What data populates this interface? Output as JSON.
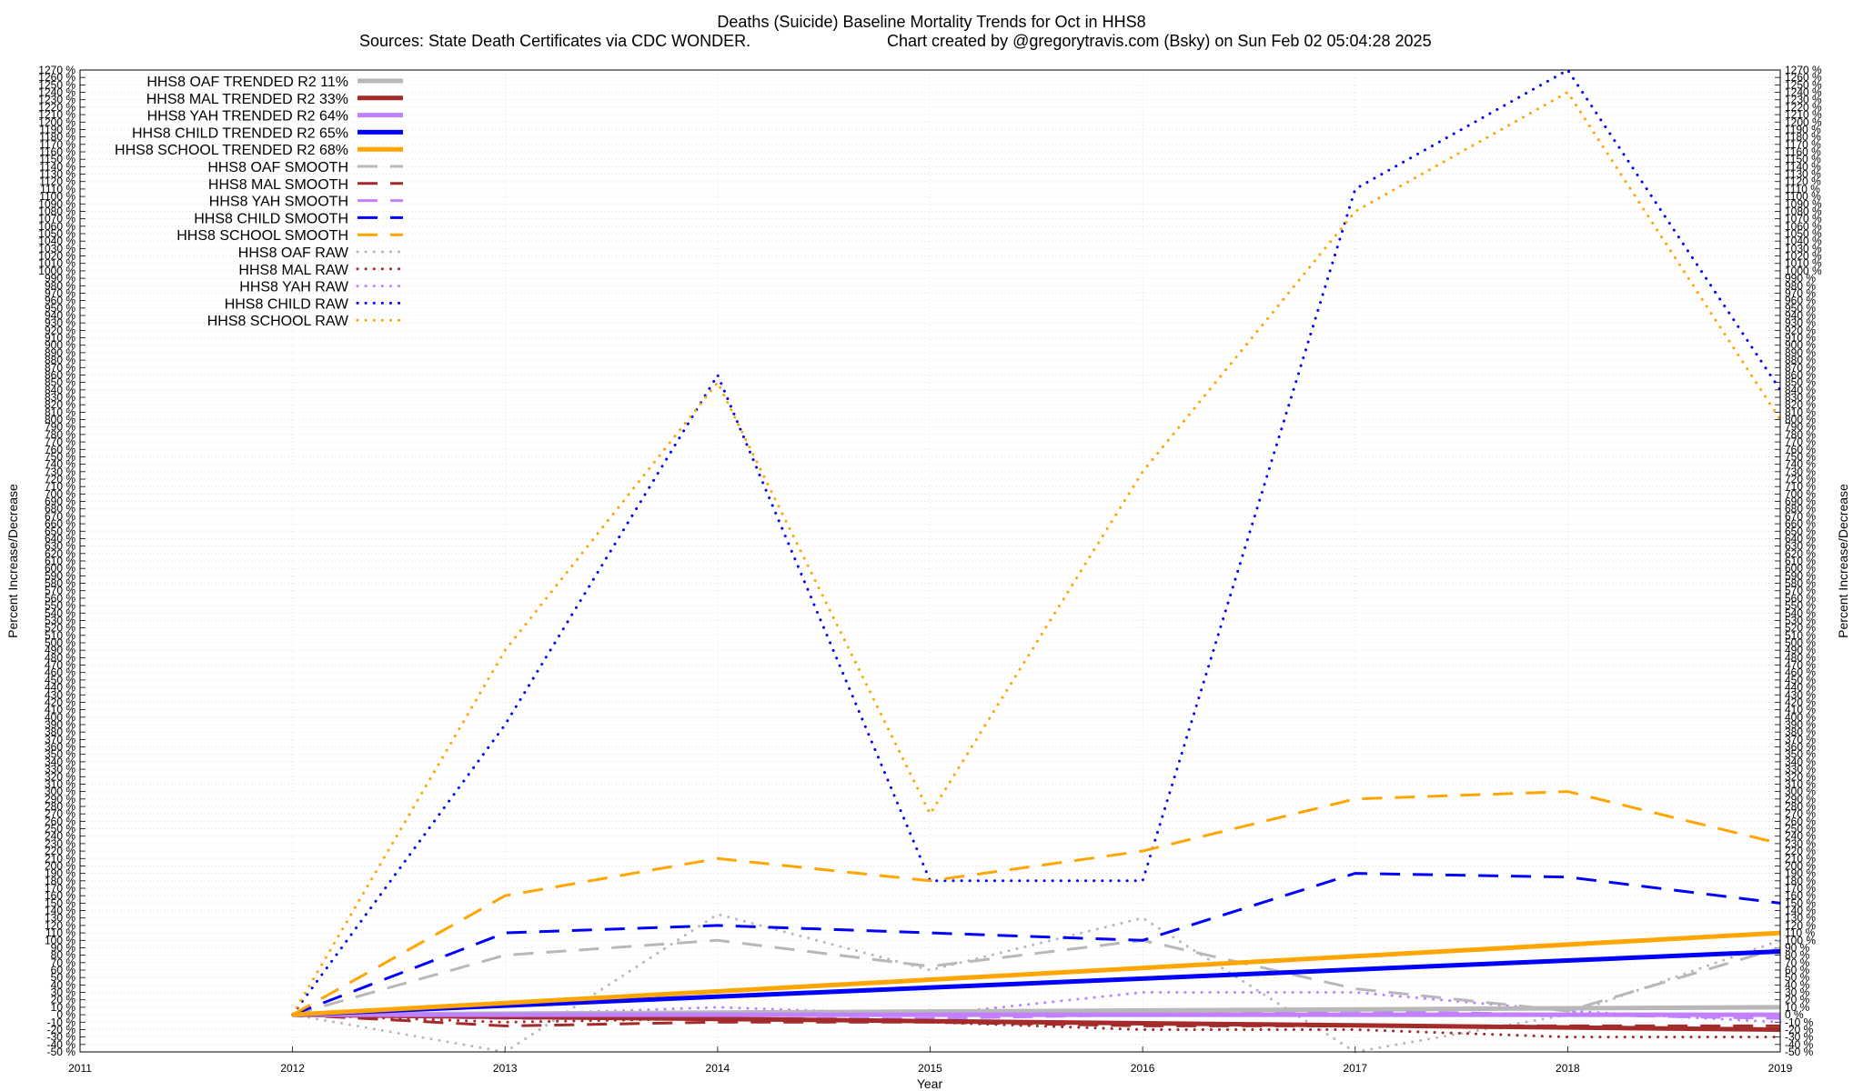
{
  "chart_data": {
    "type": "line",
    "title": "Deaths (Suicide)  Baseline Mortality Trends for Oct in HHS8",
    "subtitle_left": "Sources: State Death Certificates via CDC WONDER.",
    "subtitle_right": "Chart created by @gregorytravis.com (Bsky) on Sun Feb 02 05:04:28 2025",
    "xlabel": "Year",
    "ylabel": "Percent Increase/Decrease",
    "y2label": "Percent Increase/Decrease",
    "xlim": [
      2011,
      2019
    ],
    "ylim": [
      -50,
      1270
    ],
    "ytick_step": 10,
    "ytick_suffix": " %",
    "x_ticks": [
      "2011",
      "2012",
      "2013",
      "2014",
      "2015",
      "2016",
      "2017",
      "2018",
      "2019"
    ],
    "grid": true,
    "legend_position": "top-left",
    "series": [
      {
        "name": "HHS8 OAF TRENDED R2  11%",
        "style": "trend",
        "color": "#b8b8b8",
        "x": [
          2012,
          2019
        ],
        "y": [
          0,
          10
        ]
      },
      {
        "name": "HHS8 MAL TRENDED R2  33%",
        "style": "trend",
        "color": "#a52a2a",
        "x": [
          2012,
          2019
        ],
        "y": [
          0,
          -20
        ]
      },
      {
        "name": "HHS8 YAH TRENDED R2  64%",
        "style": "trend",
        "color": "#c080ff",
        "x": [
          2012,
          2019
        ],
        "y": [
          0,
          0
        ]
      },
      {
        "name": "HHS8 CHILD TRENDED R2  65%",
        "style": "trend",
        "color": "#0000ff",
        "x": [
          2012,
          2019
        ],
        "y": [
          0,
          85
        ]
      },
      {
        "name": "HHS8 SCHOOL TRENDED R2  68%",
        "style": "trend",
        "color": "#ffa500",
        "x": [
          2012,
          2019
        ],
        "y": [
          0,
          110
        ]
      },
      {
        "name": "HHS8 OAF SMOOTH",
        "style": "smooth",
        "color": "#b8b8b8",
        "x": [
          2012,
          2013,
          2014,
          2015,
          2016,
          2017,
          2018,
          2019
        ],
        "y": [
          0,
          80,
          100,
          65,
          100,
          35,
          5,
          90
        ]
      },
      {
        "name": "HHS8 MAL SMOOTH",
        "style": "smooth",
        "color": "#a52a2a",
        "x": [
          2012,
          2013,
          2014,
          2015,
          2016,
          2017,
          2018,
          2019
        ],
        "y": [
          0,
          -15,
          -10,
          -10,
          -15,
          -15,
          -15,
          -15
        ]
      },
      {
        "name": "HHS8 YAH SMOOTH",
        "style": "smooth",
        "color": "#c080ff",
        "x": [
          2012,
          2013,
          2014,
          2015,
          2016,
          2017,
          2018,
          2019
        ],
        "y": [
          0,
          -5,
          -5,
          -5,
          0,
          5,
          0,
          -5
        ]
      },
      {
        "name": "HHS8 CHILD SMOOTH",
        "style": "smooth",
        "color": "#0000ff",
        "x": [
          2012,
          2013,
          2014,
          2015,
          2016,
          2017,
          2018,
          2019
        ],
        "y": [
          0,
          110,
          120,
          110,
          100,
          190,
          185,
          150
        ]
      },
      {
        "name": "HHS8 SCHOOL SMOOTH",
        "style": "smooth",
        "color": "#ffa500",
        "x": [
          2012,
          2013,
          2014,
          2015,
          2016,
          2017,
          2018,
          2019
        ],
        "y": [
          0,
          160,
          210,
          180,
          220,
          290,
          300,
          230
        ]
      },
      {
        "name": "HHS8 OAF RAW",
        "style": "raw",
        "color": "#b8b8b8",
        "x": [
          2012,
          2013,
          2014,
          2015,
          2016,
          2017,
          2018,
          2019
        ],
        "y": [
          0,
          -50,
          135,
          60,
          130,
          -50,
          0,
          100
        ]
      },
      {
        "name": "HHS8 MAL RAW",
        "style": "raw",
        "color": "#a52a2a",
        "x": [
          2012,
          2013,
          2014,
          2015,
          2016,
          2017,
          2018,
          2019
        ],
        "y": [
          0,
          -10,
          -5,
          -10,
          -20,
          -20,
          -30,
          -30
        ]
      },
      {
        "name": "HHS8 YAH RAW",
        "style": "raw",
        "color": "#c080ff",
        "x": [
          2012,
          2013,
          2014,
          2015,
          2016,
          2017,
          2018,
          2019
        ],
        "y": [
          0,
          0,
          10,
          0,
          30,
          30,
          5,
          -10
        ]
      },
      {
        "name": "HHS8 CHILD RAW",
        "style": "raw",
        "color": "#0000ff",
        "x": [
          2012,
          2013,
          2014,
          2015,
          2016,
          2017,
          2018,
          2019
        ],
        "y": [
          0,
          390,
          860,
          180,
          180,
          1110,
          1270,
          840
        ]
      },
      {
        "name": "HHS8 SCHOOL RAW",
        "style": "raw",
        "color": "#ffa500",
        "x": [
          2012,
          2013,
          2014,
          2015,
          2016,
          2017,
          2018,
          2019
        ],
        "y": [
          0,
          490,
          850,
          270,
          730,
          1080,
          1240,
          800
        ]
      }
    ]
  }
}
